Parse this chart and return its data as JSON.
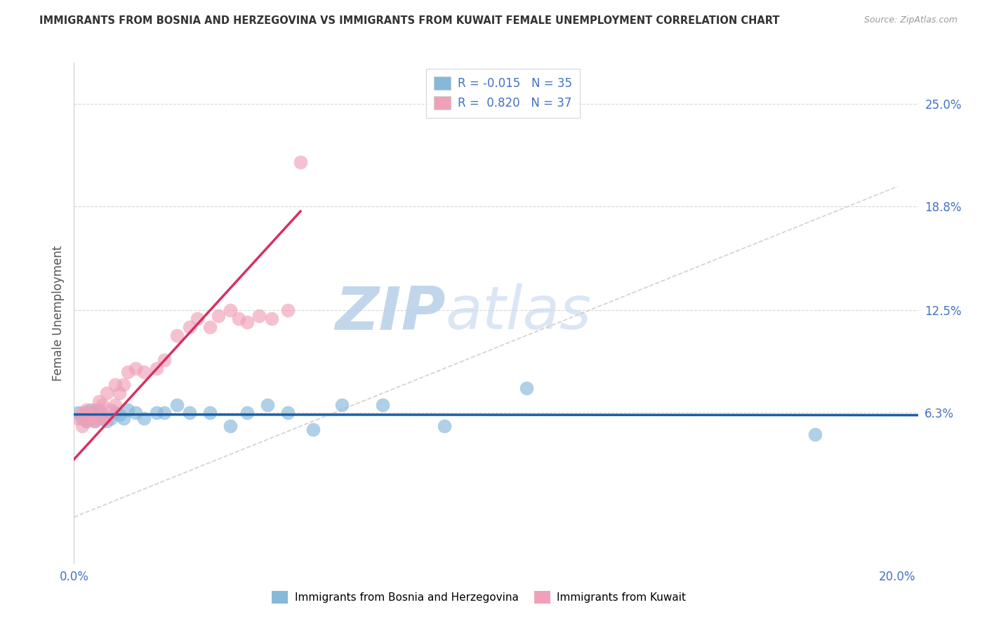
{
  "title": "IMMIGRANTS FROM BOSNIA AND HERZEGOVINA VS IMMIGRANTS FROM KUWAIT FEMALE UNEMPLOYMENT CORRELATION CHART",
  "source": "Source: ZipAtlas.com",
  "ylabel": "Female Unemployment",
  "ytick_labels": [
    "25.0%",
    "18.8%",
    "12.5%",
    "6.3%"
  ],
  "ytick_values": [
    0.25,
    0.188,
    0.125,
    0.063
  ],
  "xlim": [
    0.0,
    0.205
  ],
  "ylim": [
    -0.028,
    0.275
  ],
  "legend_bosnia_r": "-0.015",
  "legend_bosnia_n": "35",
  "legend_kuwait_r": "0.820",
  "legend_kuwait_n": "37",
  "color_bosnia": "#85b8d9",
  "color_kuwait": "#f0a0b8",
  "color_bosnia_line": "#1a5fa8",
  "color_kuwait_line": "#d63060",
  "color_diagonal": "#cccccc",
  "color_grid": "#cccccc",
  "watermark_text": "ZIPatlas",
  "watermark_color": "#ccdcee",
  "bosnia_x": [
    0.001,
    0.002,
    0.003,
    0.003,
    0.004,
    0.004,
    0.005,
    0.005,
    0.006,
    0.006,
    0.007,
    0.007,
    0.008,
    0.009,
    0.01,
    0.011,
    0.012,
    0.013,
    0.015,
    0.017,
    0.02,
    0.022,
    0.025,
    0.028,
    0.033,
    0.038,
    0.042,
    0.047,
    0.052,
    0.058,
    0.065,
    0.075,
    0.09,
    0.11,
    0.18
  ],
  "bosnia_y": [
    0.063,
    0.06,
    0.063,
    0.058,
    0.06,
    0.065,
    0.063,
    0.058,
    0.062,
    0.065,
    0.06,
    0.062,
    0.058,
    0.06,
    0.063,
    0.062,
    0.06,
    0.065,
    0.063,
    0.06,
    0.063,
    0.063,
    0.068,
    0.063,
    0.063,
    0.055,
    0.063,
    0.068,
    0.063,
    0.053,
    0.068,
    0.068,
    0.055,
    0.078,
    0.05
  ],
  "kuwait_x": [
    0.001,
    0.002,
    0.002,
    0.003,
    0.003,
    0.004,
    0.004,
    0.005,
    0.005,
    0.006,
    0.006,
    0.007,
    0.007,
    0.008,
    0.008,
    0.009,
    0.01,
    0.01,
    0.011,
    0.012,
    0.013,
    0.015,
    0.017,
    0.02,
    0.022,
    0.025,
    0.028,
    0.03,
    0.033,
    0.035,
    0.038,
    0.04,
    0.042,
    0.045,
    0.048,
    0.052,
    0.055
  ],
  "kuwait_y": [
    0.06,
    0.055,
    0.063,
    0.058,
    0.065,
    0.06,
    0.062,
    0.058,
    0.065,
    0.06,
    0.07,
    0.062,
    0.068,
    0.06,
    0.075,
    0.065,
    0.068,
    0.08,
    0.075,
    0.08,
    0.088,
    0.09,
    0.088,
    0.09,
    0.095,
    0.11,
    0.115,
    0.12,
    0.115,
    0.122,
    0.125,
    0.12,
    0.118,
    0.122,
    0.12,
    0.125,
    0.215
  ]
}
